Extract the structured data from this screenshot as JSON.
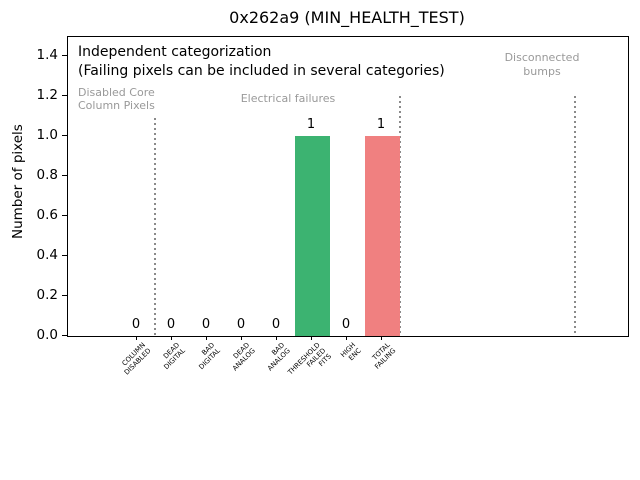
{
  "chart_data": {
    "type": "bar",
    "title": "0x262a9 (MIN_HEALTH_TEST)",
    "ylabel": "Number of pixels",
    "xlabel": "",
    "categories": [
      "COLUMN DISABLED",
      "DEAD DIGITAL",
      "BAD DIGITAL",
      "DEAD ANALOG",
      "BAD ANALOG",
      "THRESHOLD FAILED FITS",
      "HIGH ENC",
      "TOTAL FAILING"
    ],
    "category_label_lines": [
      [
        "COLUMN",
        "DISABLED"
      ],
      [
        "DEAD",
        "DIGITAL"
      ],
      [
        "BAD",
        "DIGITAL"
      ],
      [
        "DEAD",
        "ANALOG"
      ],
      [
        "BAD",
        "ANALOG"
      ],
      [
        "THRESHOLD",
        "FAILED",
        "FITS"
      ],
      [
        "HIGH",
        "ENC"
      ],
      [
        "TOTAL",
        "FAILING"
      ]
    ],
    "values": [
      0,
      0,
      0,
      0,
      0,
      1,
      0,
      1
    ],
    "value_labels": [
      "0",
      "0",
      "0",
      "0",
      "0",
      "1",
      "0",
      "1"
    ],
    "bar_colors": [
      null,
      null,
      null,
      null,
      null,
      "#3cb371",
      null,
      "#f08080"
    ],
    "ytick_labels": [
      "0.0",
      "0.2",
      "0.4",
      "0.6",
      "0.8",
      "1.0",
      "1.2",
      "1.4"
    ],
    "yticks": [
      0.0,
      0.2,
      0.4,
      0.6,
      0.8,
      1.0,
      1.2,
      1.4
    ],
    "ylim": [
      0,
      1.495
    ],
    "grid": false,
    "legend_position": "none",
    "annotations": {
      "line1": "Independent categorization",
      "line2": "(Failing pixels can be included in several categories)",
      "regions": [
        {
          "text": "Disabled Core\nColumn Pixels"
        },
        {
          "text": "Electrical failures"
        },
        {
          "text": "Disconnected\nbumps"
        }
      ]
    },
    "separators": [
      {
        "x": 0.5,
        "top": 1.09
      },
      {
        "x": 7.5,
        "top": 1.2
      },
      {
        "x": 12.5,
        "top": 1.2
      }
    ]
  },
  "colors": {
    "bar_green": "#3cb371",
    "bar_red": "#f08080",
    "gray_text": "#999999",
    "separator_gray": "#8a8a8a",
    "axis": "#000000"
  }
}
